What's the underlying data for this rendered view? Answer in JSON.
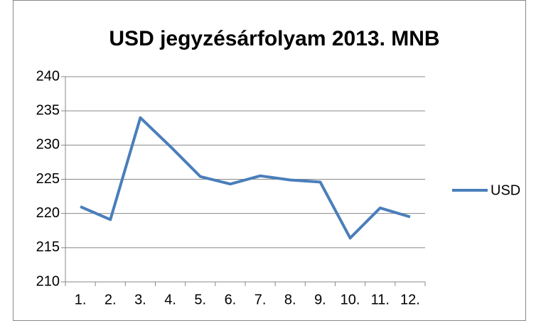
{
  "chart_data": {
    "type": "line",
    "title": "USD jegyzésárfolyam 2013. MNB",
    "categories": [
      "1.",
      "2.",
      "3.",
      "4.",
      "5.",
      "6.",
      "7.",
      "8.",
      "9.",
      "10.",
      "11.",
      "12."
    ],
    "series": [
      {
        "name": "USD",
        "color": "#4a7ebb",
        "values": [
          221,
          219.1,
          234,
          229.8,
          225.4,
          224.3,
          225.5,
          224.9,
          224.6,
          216.4,
          220.8,
          219.5
        ]
      }
    ],
    "ylim": [
      210,
      240
    ],
    "yticks": [
      210,
      215,
      220,
      225,
      230,
      235,
      240
    ],
    "grid": true,
    "legend": "right"
  }
}
